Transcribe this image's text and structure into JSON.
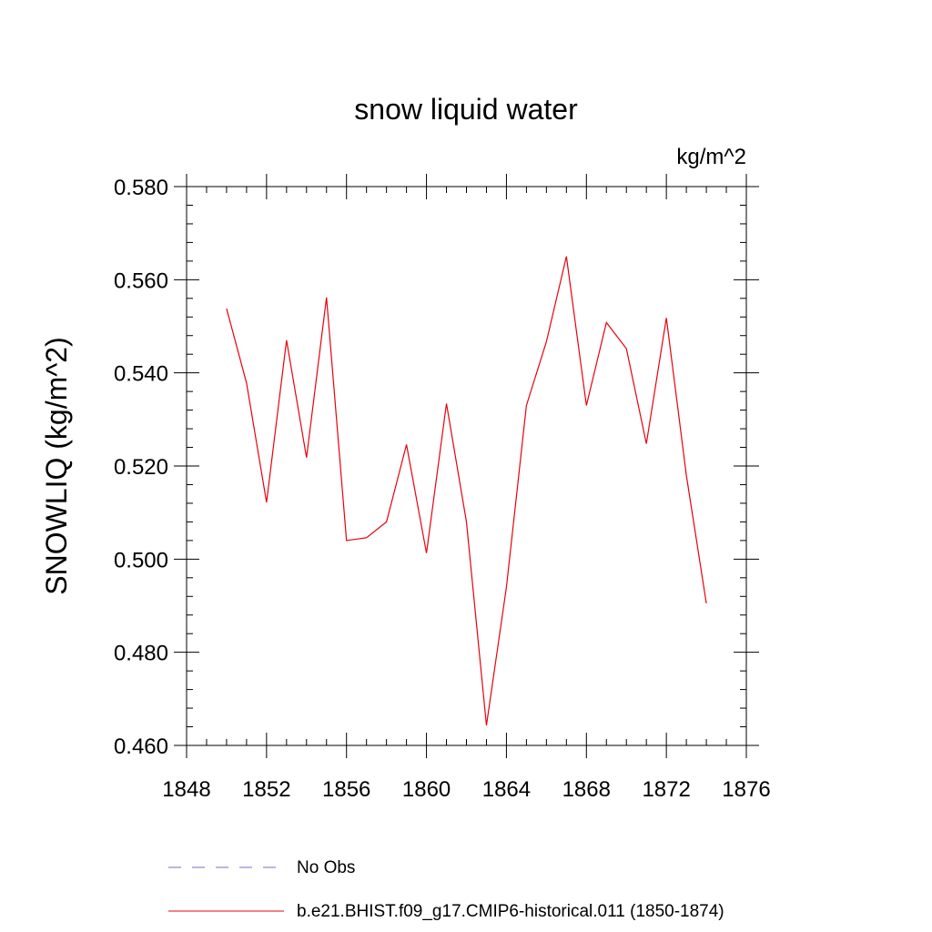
{
  "chart_data": {
    "type": "line",
    "title": "snow liquid water",
    "units_label": "kg/m^2",
    "ylabel": "SNOWLIQ  (kg/m^2)",
    "xlabel": "",
    "xlim": [
      1848,
      1876
    ],
    "ylim": [
      0.46,
      0.58
    ],
    "x_ticks": [
      "1848",
      "1852",
      "1856",
      "1860",
      "1864",
      "1868",
      "1872",
      "1876"
    ],
    "y_ticks": [
      "0.460",
      "0.480",
      "0.500",
      "0.520",
      "0.540",
      "0.560",
      "0.580"
    ],
    "grid": false,
    "legend_position": "bottom",
    "series": [
      {
        "name": "No Obs",
        "color": "#7b68c9",
        "dash": "dashed",
        "x": [],
        "values": []
      },
      {
        "name": "b.e21.BHIST.f09_g17.CMIP6-historical.011 (1850-1874)",
        "color": "#e8000b",
        "dash": "solid",
        "x": [
          1850,
          1851,
          1852,
          1853,
          1854,
          1855,
          1856,
          1857,
          1858,
          1859,
          1860,
          1861,
          1862,
          1863,
          1864,
          1865,
          1866,
          1867,
          1868,
          1869,
          1870,
          1871,
          1872,
          1873,
          1874
        ],
        "values": [
          0.5538,
          0.5378,
          0.5122,
          0.547,
          0.5218,
          0.5562,
          0.504,
          0.5046,
          0.508,
          0.5246,
          0.5013,
          0.5334,
          0.508,
          0.4643,
          0.494,
          0.533,
          0.5467,
          0.565,
          0.533,
          0.5508,
          0.5452,
          0.5248,
          0.5518,
          0.518,
          0.4905
        ]
      }
    ]
  }
}
